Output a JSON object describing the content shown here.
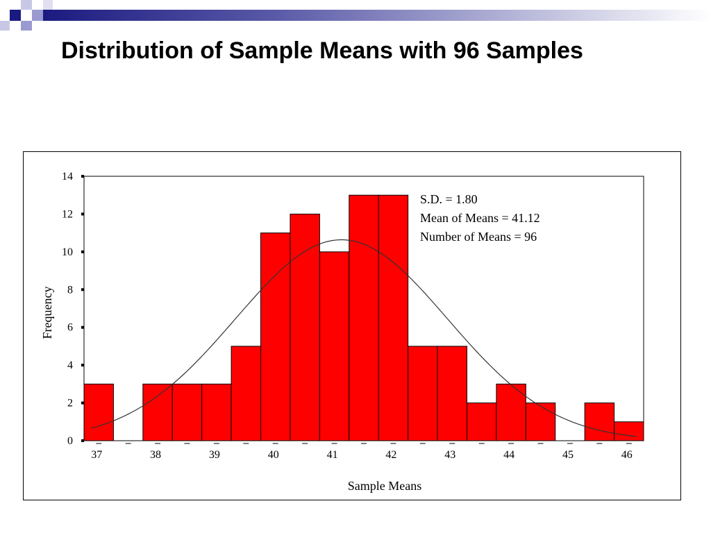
{
  "slide": {
    "title": "Distribution of Sample Means with 96 Samples"
  },
  "colors": {
    "bar_fill": "#ff0000",
    "bar_stroke": "#000000",
    "curve": "#333333",
    "deco_dark": "#1a1a80",
    "deco_light": "#9a9ad0"
  },
  "icons": {
    "corner_decoration": "square-grid-logo"
  },
  "chart_data": {
    "type": "bar",
    "title": "",
    "xlabel": "Sample Means",
    "ylabel": "Frequency",
    "ylim": [
      0,
      14
    ],
    "yticks": [
      0,
      2,
      4,
      6,
      8,
      10,
      12,
      14
    ],
    "x_range": [
      36.75,
      46.25
    ],
    "bin_width": 0.5,
    "x_tick_labels": [
      "37",
      "38",
      "39",
      "40",
      "41",
      "42",
      "43",
      "44",
      "45",
      "46"
    ],
    "x_tick_values": [
      37,
      38,
      39,
      40,
      41,
      42,
      43,
      44,
      45,
      46
    ],
    "bins": [
      {
        "center": 37.0,
        "count": 3
      },
      {
        "center": 37.5,
        "count": 0
      },
      {
        "center": 38.0,
        "count": 3
      },
      {
        "center": 38.5,
        "count": 3
      },
      {
        "center": 39.0,
        "count": 3
      },
      {
        "center": 39.5,
        "count": 5
      },
      {
        "center": 40.0,
        "count": 11
      },
      {
        "center": 40.5,
        "count": 12
      },
      {
        "center": 41.0,
        "count": 10
      },
      {
        "center": 41.5,
        "count": 13
      },
      {
        "center": 42.0,
        "count": 13
      },
      {
        "center": 42.5,
        "count": 5
      },
      {
        "center": 43.0,
        "count": 5
      },
      {
        "center": 43.5,
        "count": 2
      },
      {
        "center": 44.0,
        "count": 3
      },
      {
        "center": 44.5,
        "count": 2
      },
      {
        "center": 45.0,
        "count": 0
      },
      {
        "center": 45.5,
        "count": 2
      },
      {
        "center": 46.0,
        "count": 1
      }
    ],
    "normal_curve": {
      "mean": 41.12,
      "sd": 1.8,
      "n": 96
    },
    "annotations": [
      "S.D. = 1.80",
      "Mean of Means = 41.12",
      "Number of Means = 96"
    ],
    "grid": false
  }
}
